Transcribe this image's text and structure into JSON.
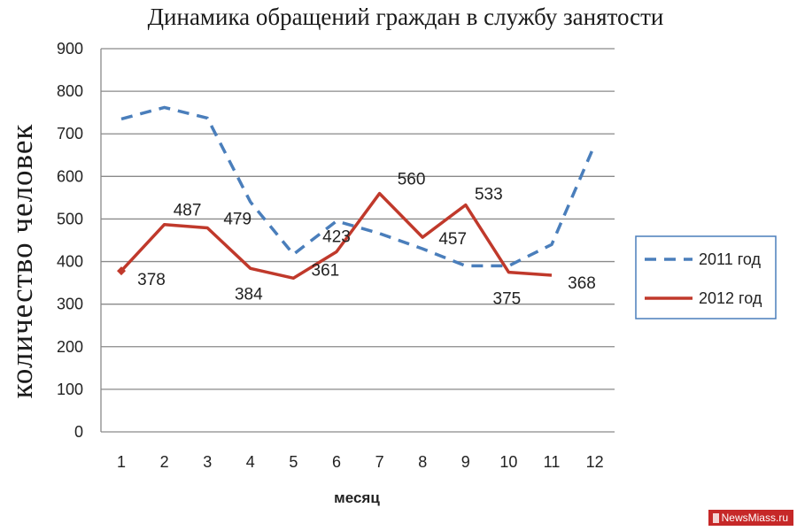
{
  "chart_data": {
    "type": "line",
    "title": "Динамика обращений граждан в службу занятости",
    "xlabel": "месяц",
    "ylabel": "количество человек",
    "categories": [
      "1",
      "2",
      "3",
      "4",
      "5",
      "6",
      "7",
      "8",
      "9",
      "10",
      "11",
      "12"
    ],
    "ylim": [
      0,
      900
    ],
    "yticks": [
      0,
      100,
      200,
      300,
      400,
      500,
      600,
      700,
      800,
      900
    ],
    "grid": true,
    "legend_position": "right",
    "series": [
      {
        "name": "2011 год",
        "color": "#4a7ebb",
        "style": "dashed",
        "values": [
          735,
          762,
          737,
          540,
          417,
          495,
          466,
          430,
          390,
          390,
          440,
          675
        ],
        "show_labels": false
      },
      {
        "name": "2012 год",
        "color": "#c0392b",
        "style": "solid",
        "values": [
          378,
          487,
          479,
          384,
          361,
          423,
          560,
          457,
          533,
          375,
          368,
          null
        ],
        "show_labels": true
      }
    ]
  },
  "watermark": {
    "text": "NewsMiass.ru",
    "color": "#c62828"
  }
}
